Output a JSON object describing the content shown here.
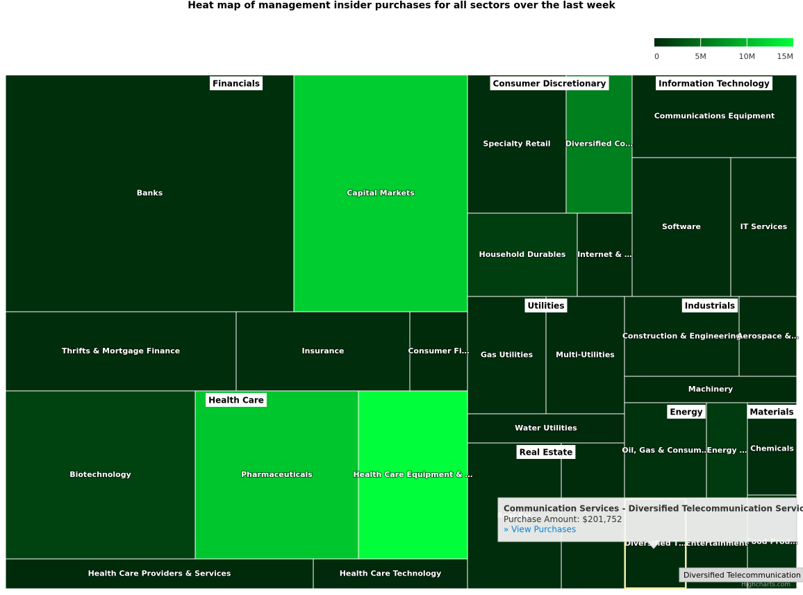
{
  "chart_data": {
    "type": "treemap",
    "title": "Heat map of management insider purchases for all sectors over the last week",
    "clim": [
      0,
      15000000
    ],
    "cticks": [
      0,
      {
        "value": 5000000,
        "label": "5M"
      },
      {
        "value": 10000000,
        "label": "10M"
      },
      {
        "value": 15000000,
        "label": "15M"
      }
    ],
    "colors": [
      "#00290b",
      "#00ff3a"
    ],
    "sectors": [
      {
        "name": "Financials",
        "children": [
          {
            "name": "Banks",
            "value": 400000
          },
          {
            "name": "Capital Markets",
            "value": 11500000
          },
          {
            "name": "Thrifts & Mortgage Finance",
            "value": 300000
          },
          {
            "name": "Insurance",
            "value": 250000
          },
          {
            "name": "Consumer Fi…",
            "value": 150000
          }
        ]
      },
      {
        "name": "Health Care",
        "children": [
          {
            "name": "Biotechnology",
            "value": 1800000
          },
          {
            "name": "Pharmaceuticals",
            "value": 11000000
          },
          {
            "name": "Health Care Equipment & …",
            "value": 15000000
          },
          {
            "name": "Health Care Providers & Services",
            "value": 150000
          },
          {
            "name": "Health Care Technology",
            "value": 100000
          }
        ]
      },
      {
        "name": "Consumer Discretionary",
        "children": [
          {
            "name": "Specialty Retail",
            "value": 250000
          },
          {
            "name": "Diversified Co…",
            "value": 6000000
          },
          {
            "name": "Household Durables",
            "value": 1500000
          },
          {
            "name": "Internet & …",
            "value": 200000
          }
        ]
      },
      {
        "name": "Information Technology",
        "children": [
          {
            "name": "Communications Equipment",
            "value": 300000
          },
          {
            "name": "Software",
            "value": 350000
          },
          {
            "name": "IT Services",
            "value": 250000
          }
        ]
      },
      {
        "name": "Utilities",
        "children": [
          {
            "name": "Gas Utilities",
            "value": 300000
          },
          {
            "name": "Multi-Utilities",
            "value": 200000
          },
          {
            "name": "Water Utilities",
            "value": 100000
          }
        ]
      },
      {
        "name": "Industrials",
        "children": [
          {
            "name": "Construction & Engineering",
            "value": 300000
          },
          {
            "name": "Aerospace &…",
            "value": 200000
          },
          {
            "name": "Machinery",
            "value": 150000
          }
        ]
      },
      {
        "name": "Real Estate",
        "children": [
          {
            "name": "Real Est",
            "value": 250000
          },
          {
            "name": null,
            "value": 200000
          }
        ]
      },
      {
        "name": "Energy",
        "children": [
          {
            "name": "Oil, Gas & Consum…",
            "value": 600000
          },
          {
            "name": "Energy …",
            "value": 1200000
          }
        ]
      },
      {
        "name": "Materials",
        "children": [
          {
            "name": "Chemicals",
            "value": 300000
          }
        ]
      },
      {
        "name": null,
        "children": [
          {
            "name": "Food Prod…",
            "value": 500000
          }
        ]
      },
      {
        "name": null,
        "children": [
          {
            "name": "Diversified T…",
            "value": 201752,
            "value_label": "$201,752"
          },
          {
            "name": "Entertainment",
            "value": 100000
          }
        ]
      }
    ],
    "tooltip": {
      "title": "Communication Services - Diversified Telecommunication Services",
      "prefix": "Purchase Amount: ",
      "link": "» View Purchases"
    },
    "hover_label": "Diversified Telecommunication Services",
    "credits": "Highcharts.com"
  }
}
